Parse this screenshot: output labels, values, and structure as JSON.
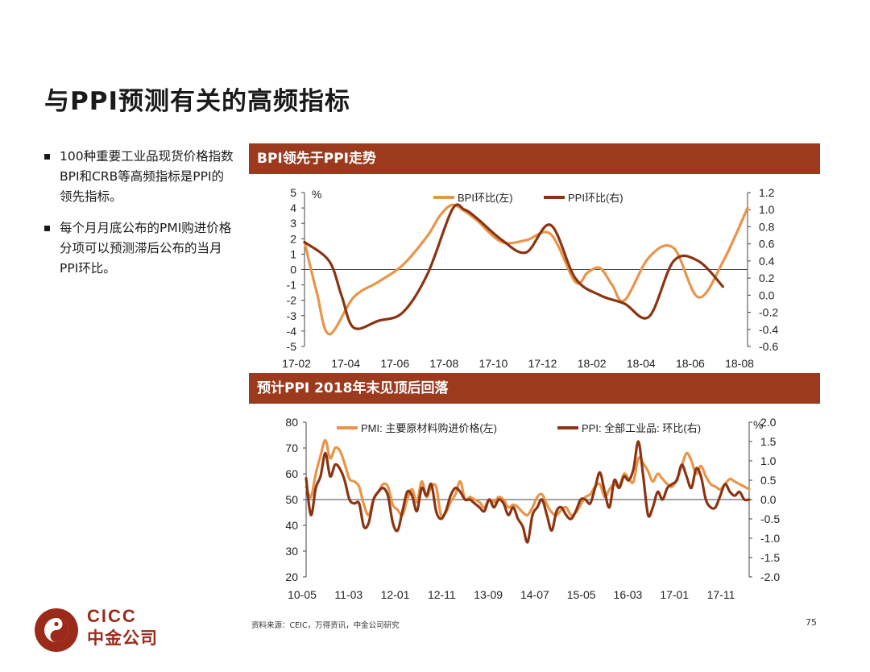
{
  "page": {
    "title": "与PPI预测有关的高频指标",
    "bullets": [
      "100种重要工业品现货价格指数BPI和CRB等高频指标是PPI的领先指标。",
      "每个月月底公布的PMI购进价格分项可以预测滞后公布的当月PPI环比。"
    ],
    "source": "资料来源：CEIC，万得资讯，中金公司研究",
    "page_number": "75",
    "logo": {
      "en": "CICC",
      "cn": "中金公司"
    }
  },
  "colors": {
    "header": "#9c3a1e",
    "series_light": "#e8954a",
    "series_dark": "#8b3412",
    "logo": "#9c2a1a"
  },
  "chart_data": [
    {
      "type": "line",
      "title": "BPI领先于PPI走势",
      "unit_label": "%",
      "x_ticks": [
        "17-02",
        "17-04",
        "17-06",
        "17-08",
        "17-10",
        "17-12",
        "18-02",
        "18-04",
        "18-06",
        "18-08"
      ],
      "x_range": [
        0,
        18
      ],
      "y_left": {
        "min": -5,
        "max": 5,
        "ticks": [
          "5",
          "4",
          "3",
          "2",
          "1",
          "0",
          "-1",
          "-2",
          "-3",
          "-4",
          "-5"
        ]
      },
      "y_right": {
        "min": -0.6,
        "max": 1.2,
        "ticks": [
          "1.2",
          "1.0",
          "0.8",
          "0.6",
          "0.4",
          "0.2",
          "0.0",
          "-0.2",
          "-0.4",
          "-0.6"
        ]
      },
      "series": [
        {
          "name": "BPI环比(左)",
          "axis": "left",
          "color": "#e8954a",
          "x": [
            0,
            0.5,
            1,
            2,
            3,
            4,
            5,
            5.5,
            6,
            6.5,
            7,
            8,
            9,
            10,
            11,
            11.5,
            12,
            12.5,
            13,
            14,
            15,
            16,
            17,
            18
          ],
          "y": [
            1.8,
            -1.5,
            -4.2,
            -1.8,
            -0.8,
            0.3,
            2.2,
            3.5,
            4.2,
            3.8,
            3.2,
            1.8,
            1.9,
            2.3,
            -0.8,
            -0.2,
            0.1,
            -1.0,
            -2.0,
            0.8,
            1.4,
            -1.8,
            0.5,
            4.0
          ]
        },
        {
          "name": "PPI环比(右)",
          "axis": "right",
          "color": "#8b3412",
          "x": [
            0,
            1,
            1.5,
            2,
            3,
            4,
            5,
            6,
            6.5,
            7,
            8,
            9,
            10,
            11,
            12,
            13,
            14,
            15,
            16,
            17
          ],
          "y": [
            0.62,
            0.4,
            0.0,
            -0.38,
            -0.3,
            -0.2,
            0.25,
            1.0,
            1.0,
            0.9,
            0.65,
            0.5,
            0.82,
            0.2,
            0.0,
            -0.1,
            -0.25,
            0.4,
            0.4,
            0.1
          ]
        }
      ]
    },
    {
      "type": "line",
      "title": "预计PPI 2018年末见顶后回落",
      "unit_label": "%",
      "x_ticks": [
        "10-05",
        "11-03",
        "12-01",
        "12-11",
        "13-09",
        "14-07",
        "15-05",
        "16-03",
        "17-01",
        "17-11"
      ],
      "x_range": [
        0,
        92
      ],
      "y_left": {
        "min": 20,
        "max": 80,
        "ticks": [
          "80",
          "70",
          "60",
          "50",
          "40",
          "30",
          "20"
        ]
      },
      "y_right": {
        "min": -2.0,
        "max": 2.0,
        "ticks": [
          "2.0",
          "1.5",
          "1.0",
          "0.5",
          "0.0",
          "-0.5",
          "-1.0",
          "-1.5",
          "-2.0"
        ]
      },
      "series": [
        {
          "name": "PMI: 主要原材料购进价格(左)",
          "axis": "left",
          "color": "#e8954a",
          "x": [
            0,
            1,
            2,
            3,
            4,
            5,
            6,
            7,
            8,
            9,
            10,
            11,
            12,
            13,
            14,
            15,
            16,
            17,
            18,
            19,
            20,
            21,
            22,
            23,
            24,
            25,
            26,
            27,
            28,
            29,
            30,
            31,
            32,
            33,
            34,
            35,
            36,
            37,
            38,
            39,
            40,
            41,
            42,
            43,
            44,
            45,
            46,
            47,
            48,
            49,
            50,
            51,
            52,
            53,
            54,
            55,
            56,
            57,
            58,
            59,
            60,
            61,
            62,
            63,
            64,
            65,
            66,
            67,
            68,
            69,
            70,
            71,
            72,
            73,
            74,
            75,
            76,
            77,
            78,
            79,
            80,
            81,
            82,
            83,
            84,
            85,
            86,
            87,
            88,
            89,
            90,
            91,
            92
          ],
          "y": [
            55,
            51,
            60,
            67,
            73,
            66,
            70,
            69,
            64,
            58,
            57,
            55,
            48,
            44,
            50,
            53,
            56,
            55,
            48,
            46,
            44,
            50,
            54,
            49,
            57,
            51,
            55,
            55,
            44,
            45,
            49,
            52,
            57,
            50,
            51,
            50,
            49,
            47,
            50,
            49,
            51,
            50,
            47,
            48,
            47,
            45,
            44,
            47,
            51,
            52,
            48,
            45,
            44,
            46,
            47,
            44,
            45,
            48,
            51,
            52,
            55,
            56,
            51,
            54,
            56,
            55,
            60,
            58,
            57,
            66,
            64,
            61,
            57,
            60,
            58,
            56,
            55,
            58,
            63,
            68,
            65,
            60,
            63,
            59,
            56,
            55,
            54,
            56,
            58,
            57,
            56,
            55,
            54
          ]
        },
        {
          "name": "PPI: 全部工业品: 环比(右)",
          "axis": "right",
          "color": "#8b3412",
          "x": [
            0,
            1,
            2,
            3,
            4,
            5,
            6,
            7,
            8,
            9,
            10,
            11,
            12,
            13,
            14,
            15,
            16,
            17,
            18,
            19,
            20,
            21,
            22,
            23,
            24,
            25,
            26,
            27,
            28,
            29,
            30,
            31,
            32,
            33,
            34,
            35,
            36,
            37,
            38,
            39,
            40,
            41,
            42,
            43,
            44,
            45,
            46,
            47,
            48,
            49,
            50,
            51,
            52,
            53,
            54,
            55,
            56,
            57,
            58,
            59,
            60,
            61,
            62,
            63,
            64,
            65,
            66,
            67,
            68,
            69,
            70,
            71,
            72,
            73,
            74,
            75,
            76,
            77,
            78,
            79,
            80,
            81,
            82,
            83,
            84,
            85,
            86,
            87,
            88,
            89,
            90,
            91,
            92
          ],
          "y": [
            0.55,
            -0.4,
            0.3,
            0.6,
            1.2,
            0.6,
            0.9,
            0.8,
            0.5,
            0.0,
            -0.1,
            -0.1,
            -0.7,
            -0.6,
            0.0,
            0.2,
            0.3,
            0.1,
            -0.6,
            -0.8,
            -0.3,
            0.2,
            0.1,
            -0.3,
            0.3,
            0.1,
            0.4,
            -0.3,
            -0.5,
            -0.3,
            0.1,
            0.3,
            0.2,
            0.0,
            0.0,
            -0.1,
            -0.2,
            -0.3,
            0.0,
            -0.2,
            0.0,
            -0.1,
            -0.4,
            -0.2,
            -0.5,
            -0.7,
            -1.1,
            -0.4,
            -0.2,
            0.0,
            -0.4,
            -0.8,
            -0.3,
            -0.2,
            -0.4,
            -0.5,
            -0.3,
            0.0,
            0.0,
            -0.1,
            0.3,
            0.7,
            0.2,
            -0.2,
            0.5,
            0.3,
            0.6,
            0.5,
            0.8,
            1.5,
            0.6,
            -0.4,
            -0.2,
            0.2,
            0.0,
            0.3,
            0.4,
            0.5,
            0.9,
            0.6,
            0.3,
            0.8,
            0.6,
            0.0,
            -0.2,
            -0.2,
            0.1,
            0.4,
            0.2,
            0.1,
            0.2,
            0.0,
            0.0
          ]
        }
      ]
    }
  ]
}
